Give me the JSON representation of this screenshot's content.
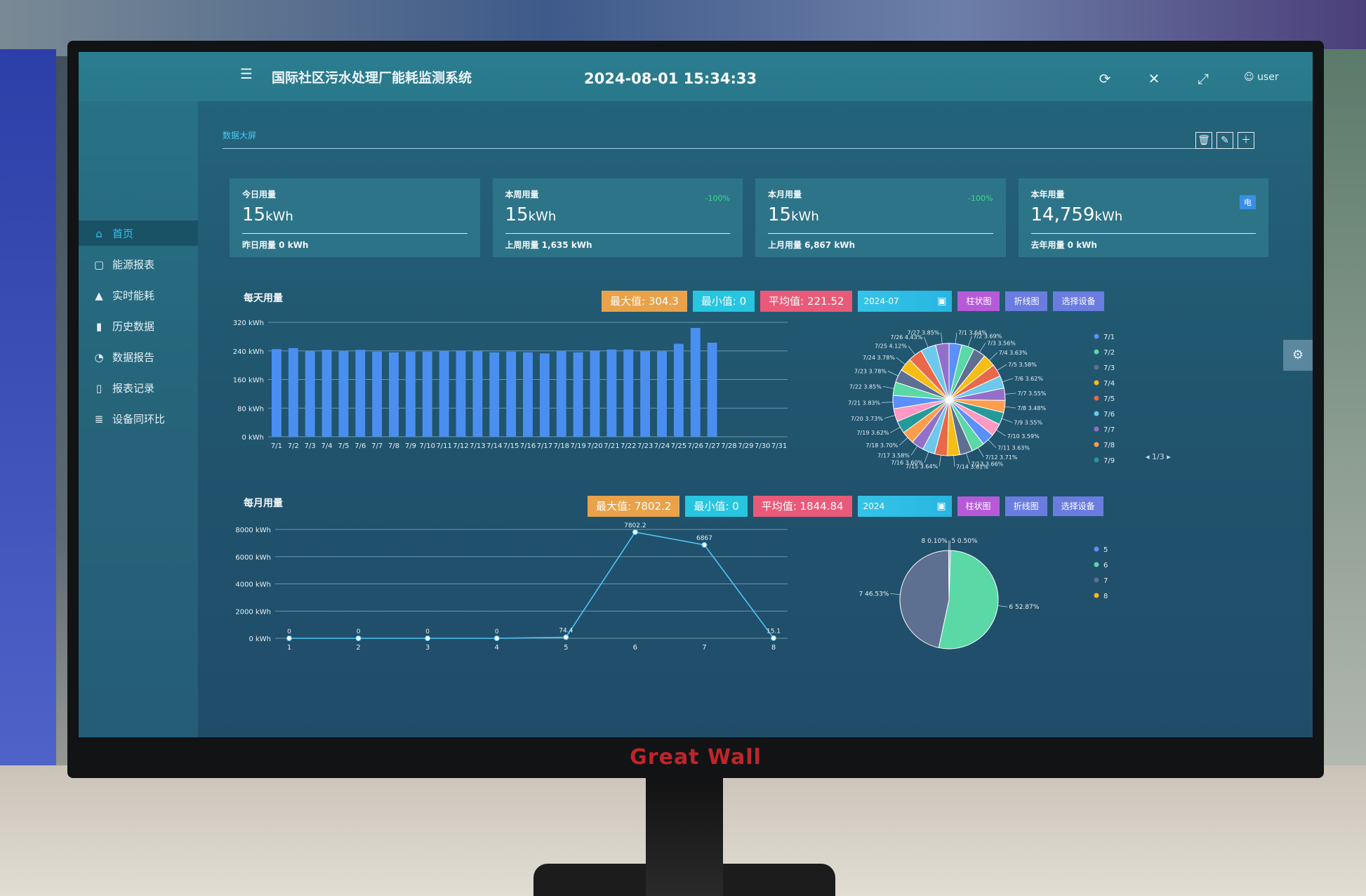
{
  "app": {
    "title": "国际社区污水处理厂能耗监测系统",
    "datetime": "2024-08-01 15:34:33",
    "user": "user",
    "brand": "Great Wall"
  },
  "sidebar": {
    "items": [
      {
        "label": "首页",
        "icon": "home-icon",
        "active": true
      },
      {
        "label": "能源报表",
        "icon": "report-icon"
      },
      {
        "label": "实时能耗",
        "icon": "area-chart-icon"
      },
      {
        "label": "历史数据",
        "icon": "bar-chart-icon"
      },
      {
        "label": "数据报告",
        "icon": "pie-chart-icon"
      },
      {
        "label": "报表记录",
        "icon": "document-icon"
      },
      {
        "label": "设备同环比",
        "icon": "list-icon"
      }
    ]
  },
  "tabs": [
    {
      "label": "数据大屏"
    }
  ],
  "cards": [
    {
      "label": "今日用量",
      "value": "15",
      "unit": "kWh",
      "sub": "昨日用量  0  kWh",
      "pct": "",
      "badge": ""
    },
    {
      "label": "本周用量",
      "value": "15",
      "unit": "kWh",
      "sub": "上周用量  1,635  kWh",
      "pct": "-100%",
      "badge": ""
    },
    {
      "label": "本月用量",
      "value": "15",
      "unit": "kWh",
      "sub": "上月用量  6,867  kWh",
      "pct": "-100%",
      "badge": ""
    },
    {
      "label": "本年用量",
      "value": "14,759",
      "unit": "kWh",
      "sub": "去年用量  0  kWh",
      "pct": "",
      "badge": "电"
    }
  ],
  "daily": {
    "title": "每天用量",
    "max_label": "最大值: 304.3",
    "min_label": "最小值: 0",
    "avg_label": "平均值: 221.52",
    "date": "2024-07",
    "btn_bar": "柱状图",
    "btn_line": "折线图",
    "btn_device": "选择设备",
    "legend_pager": "1/3"
  },
  "monthly": {
    "title": "每月用量",
    "max_label": "最大值: 7802.2",
    "min_label": "最小值: 0",
    "avg_label": "平均值: 1844.84",
    "date": "2024",
    "btn_bar": "柱状图",
    "btn_line": "折线图",
    "btn_device": "选择设备"
  },
  "chart_data": [
    {
      "type": "bar",
      "title": "每天用量",
      "categories": [
        "7/1",
        "7/2",
        "7/3",
        "7/4",
        "7/5",
        "7/6",
        "7/7",
        "7/8",
        "7/9",
        "7/10",
        "7/11",
        "7/12",
        "7/13",
        "7/14",
        "7/15",
        "7/16",
        "7/17",
        "7/18",
        "7/19",
        "7/20",
        "7/21",
        "7/22",
        "7/23",
        "7/24",
        "7/25",
        "7/26",
        "7/27",
        "7/28",
        "7/29",
        "7/30",
        "7/31"
      ],
      "values": [
        245,
        248,
        240,
        243,
        240,
        243,
        238,
        236,
        238,
        238,
        240,
        241,
        239,
        236,
        238,
        236,
        233,
        240,
        236,
        241,
        244,
        244,
        239,
        239,
        260,
        304.3,
        263,
        0,
        0,
        0,
        0
      ],
      "yticks": [
        "0 kWh",
        "80 kWh",
        "160 kWh",
        "240 kWh",
        "320 kWh"
      ],
      "ylim": [
        0,
        320
      ],
      "grid": true
    },
    {
      "type": "pie",
      "title": "",
      "labels": [
        "7/1",
        "7/2",
        "7/3",
        "7/4",
        "7/5",
        "7/6",
        "7/7",
        "7/8",
        "7/9",
        "7/10",
        "7/11",
        "7/12",
        "7/13",
        "7/14",
        "7/15",
        "7/16",
        "7/17",
        "7/18",
        "7/19",
        "7/20",
        "7/21",
        "7/22",
        "7/23",
        "7/24",
        "7/25",
        "7/26",
        "7/27"
      ],
      "values": [
        3.64,
        3.69,
        3.56,
        3.63,
        3.58,
        3.62,
        3.55,
        3.48,
        3.55,
        3.59,
        3.63,
        3.71,
        3.66,
        3.61,
        3.64,
        3.6,
        3.58,
        3.7,
        3.62,
        3.73,
        3.83,
        3.85,
        3.78,
        3.78,
        4.12,
        4.43,
        3.85
      ],
      "slice_labels": [
        "7/1 3.64%",
        "7/2 3.69%",
        "7/3 3.56%",
        "7/4 3.63%",
        "7/5 3.58%",
        "7/6 3.62%",
        "7/7 3.55%",
        "7/8 3.48%",
        "7/9 3.55%",
        "7/10 3.59%",
        "7/11 3.63%",
        "7/12 3.71%",
        "7/13 3.66%",
        "7/14 3.61%",
        "7/15 3.64%",
        "7/16 3.60%",
        "7/17 3.58%",
        "7/18 3.70%",
        "7/19 3.62%",
        "7/20 3.73%",
        "7/21 3.83%",
        "7/22 3.85%",
        "7/23 3.78%",
        "7/24 3.78%",
        "7/25 4.12%",
        "7/26 4.43%",
        "7/27 3.85%"
      ],
      "legend": [
        "7/1",
        "7/2",
        "7/3",
        "7/4",
        "7/5",
        "7/6",
        "7/7",
        "7/8",
        "7/9"
      ],
      "legend_placement": "right",
      "colors": [
        "#5b8ff9",
        "#5ad8a6",
        "#5d7092",
        "#f6bd16",
        "#e8684a",
        "#6dc8ec",
        "#9270ca",
        "#ff9d4d",
        "#269a99",
        "#ff99c3",
        "#5b8ff9",
        "#5ad8a6",
        "#5d7092",
        "#f6bd16",
        "#e8684a",
        "#6dc8ec",
        "#9270ca",
        "#ff9d4d",
        "#269a99",
        "#ff99c3",
        "#5b8ff9",
        "#5ad8a6",
        "#5d7092",
        "#f6bd16",
        "#e8684a",
        "#6dc8ec",
        "#9270ca"
      ]
    },
    {
      "type": "line",
      "title": "每月用量",
      "x": [
        "1",
        "2",
        "3",
        "4",
        "5",
        "6",
        "7",
        "8"
      ],
      "values": [
        0,
        0,
        0,
        0,
        74.4,
        7802.2,
        6867,
        15.1
      ],
      "point_labels": [
        "0",
        "0",
        "0",
        "0",
        "74.4",
        "7802.2",
        "6867",
        "15.1"
      ],
      "yticks": [
        "0 kWh",
        "2000 kWh",
        "4000 kWh",
        "6000 kWh",
        "8000 kWh"
      ],
      "ylim": [
        0,
        8000
      ],
      "grid": true
    },
    {
      "type": "pie",
      "title": "",
      "labels": [
        "5",
        "6",
        "7",
        "8"
      ],
      "values": [
        0.5,
        52.87,
        46.53,
        0.1
      ],
      "slice_labels": [
        "5 0.50%",
        "6 52.87%",
        "7 46.53%",
        "8 0.10%"
      ],
      "legend": [
        "5",
        "6",
        "7",
        "8"
      ],
      "legend_placement": "right",
      "colors": [
        "#5b8ff9",
        "#5ad8a6",
        "#5d7092",
        "#f6bd16"
      ]
    }
  ]
}
